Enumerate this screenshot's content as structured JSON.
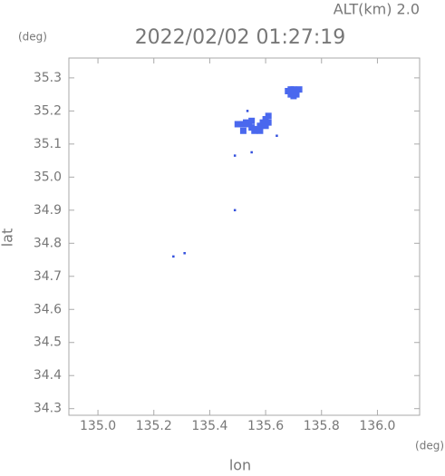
{
  "chart_data": {
    "type": "scatter",
    "title": "2022/02/02 01:27:19",
    "altitude_label": "ALT(km) 2.0",
    "y_unit": "(deg)",
    "x_unit": "(deg)",
    "xlabel": "lon",
    "ylabel": "lat",
    "xlim": [
      134.896,
      136.151
    ],
    "ylim": [
      34.28,
      35.36
    ],
    "xticks": [
      {
        "value": 135.0,
        "label": "135.0"
      },
      135.2,
      135.4,
      135.6,
      135.8,
      {
        "value": 136.0,
        "label": "136.0"
      }
    ],
    "yticks": [
      34.3,
      34.4,
      34.5,
      34.6,
      34.7,
      34.8,
      34.9,
      {
        "value": 35.0,
        "label": "35.0"
      },
      35.1,
      35.2,
      35.3
    ],
    "series": [
      {
        "color": "#4a68ee",
        "marker_size": 7,
        "x": [
          135.68,
          135.69,
          135.7,
          135.71,
          135.72,
          135.69,
          135.7,
          135.71,
          135.7,
          135.5,
          135.52,
          135.53,
          135.54,
          135.55,
          135.56,
          135.57,
          135.58,
          135.59,
          135.6,
          135.61,
          135.61,
          135.6,
          135.58,
          135.55,
          135.52
        ],
        "y": [
          35.26,
          35.265,
          35.265,
          35.26,
          35.265,
          35.25,
          35.25,
          35.25,
          35.245,
          35.16,
          35.16,
          35.165,
          35.16,
          35.15,
          35.14,
          35.145,
          35.155,
          35.165,
          35.175,
          35.185,
          35.165,
          35.155,
          35.14,
          35.17,
          35.14
        ]
      },
      {
        "color": "#3350dd",
        "marker_size": 2.5,
        "x": [
          135.535,
          135.64,
          135.49,
          135.55,
          135.49,
          135.31,
          135.27
        ],
        "y": [
          35.2,
          35.125,
          35.065,
          35.075,
          34.9,
          34.77,
          34.76
        ]
      }
    ]
  }
}
